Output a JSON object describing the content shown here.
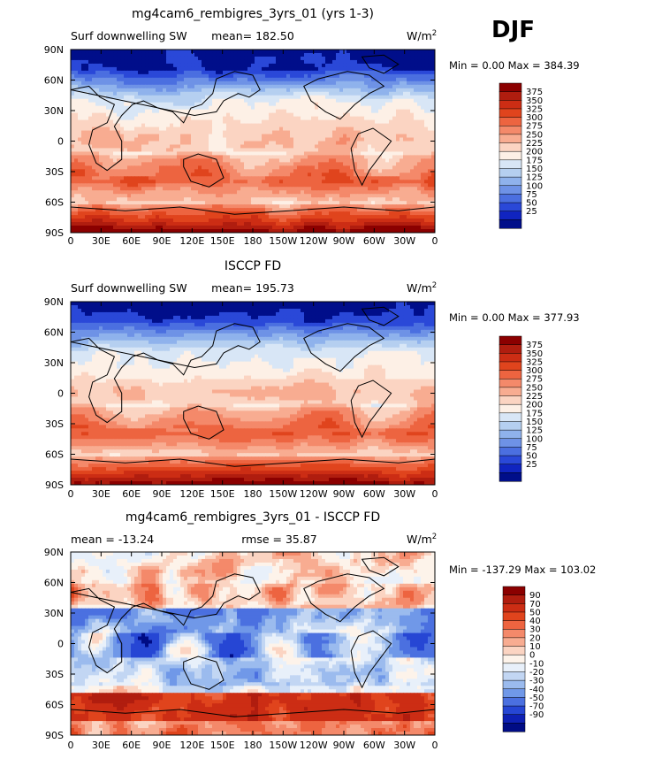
{
  "figure": {
    "season": "DJF"
  },
  "chart_data": [
    {
      "type": "heatmap",
      "title": "mg4cam6_rembigres_3yrs_01 (yrs 1-3)",
      "left_label": "Surf downwelling SW",
      "center_label": "mean= 182.50",
      "units_label": "W/m",
      "units_sup": "2",
      "min_max": "Min =    0.00 Max = 384.39",
      "xticks": [
        "0",
        "30E",
        "60E",
        "90E",
        "120E",
        "150E",
        "180",
        "150W",
        "120W",
        "90W",
        "60W",
        "30W",
        "0"
      ],
      "yticks": [
        "90N",
        "60N",
        "30N",
        "0",
        "30S",
        "60S",
        "90S"
      ],
      "colorbar": [
        "375",
        "350",
        "325",
        "300",
        "275",
        "250",
        "225",
        "200",
        "175",
        "150",
        "125",
        "100",
        "75",
        "50",
        "25"
      ],
      "colors": [
        "#8b0000",
        "#b01d0f",
        "#cc2d14",
        "#e0441d",
        "#ed6440",
        "#f4896a",
        "#f8ac91",
        "#fbd4c2",
        "#fdf0e6",
        "#d8e6f6",
        "#b5cff0",
        "#8fb2ec",
        "#6e92e6",
        "#4b6fe0",
        "#2a48d8",
        "#1024c0",
        "#000e8a"
      ],
      "field": "abs",
      "mean": 182.5
    },
    {
      "type": "heatmap",
      "title": "ISCCP FD",
      "left_label": "Surf downwelling SW",
      "center_label": "mean= 195.73",
      "units_label": "W/m",
      "units_sup": "2",
      "min_max": "Min =    0.00 Max = 377.93",
      "xticks": [
        "0",
        "30E",
        "60E",
        "90E",
        "120E",
        "150E",
        "180",
        "150W",
        "120W",
        "90W",
        "60W",
        "30W",
        "0"
      ],
      "yticks": [
        "90N",
        "60N",
        "30N",
        "0",
        "30S",
        "60S",
        "90S"
      ],
      "colorbar": [
        "375",
        "350",
        "325",
        "300",
        "275",
        "250",
        "225",
        "200",
        "175",
        "150",
        "125",
        "100",
        "75",
        "50",
        "25"
      ],
      "colors": [
        "#8b0000",
        "#b01d0f",
        "#cc2d14",
        "#e0441d",
        "#ed6440",
        "#f4896a",
        "#f8ac91",
        "#fbd4c2",
        "#fdf0e6",
        "#d8e6f6",
        "#b5cff0",
        "#8fb2ec",
        "#6e92e6",
        "#4b6fe0",
        "#2a48d8",
        "#1024c0",
        "#000e8a"
      ],
      "field": "abs",
      "mean": 195.73
    },
    {
      "type": "heatmap",
      "title": "mg4cam6_rembigres_3yrs_01 - ISCCP FD",
      "left_label": "mean = -13.24",
      "center_label": "rmse =  35.87",
      "units_label": "W/m",
      "units_sup": "2",
      "min_max": "Min = -137.29 Max = 103.02",
      "xticks": [
        "0",
        "30E",
        "60E",
        "90E",
        "120E",
        "150E",
        "180",
        "150W",
        "120W",
        "90W",
        "60W",
        "30W",
        "0"
      ],
      "yticks": [
        "90N",
        "60N",
        "30N",
        "0",
        "30S",
        "60S",
        "90S"
      ],
      "colorbar": [
        "90",
        "70",
        "50",
        "40",
        "30",
        "20",
        "10",
        "0",
        "-10",
        "-20",
        "-30",
        "-40",
        "-50",
        "-70",
        "-90"
      ],
      "colors": [
        "#8b0000",
        "#b01d0f",
        "#cc2d14",
        "#e0441d",
        "#ed6440",
        "#f4896a",
        "#f8ac91",
        "#fbd4c2",
        "#fdf3ea",
        "#e8f0fa",
        "#c2d6f3",
        "#9bbbee",
        "#7098e8",
        "#4b70e0",
        "#2646d4",
        "#0e20b4",
        "#000c85"
      ],
      "field": "diff",
      "mean": -13.24
    }
  ]
}
